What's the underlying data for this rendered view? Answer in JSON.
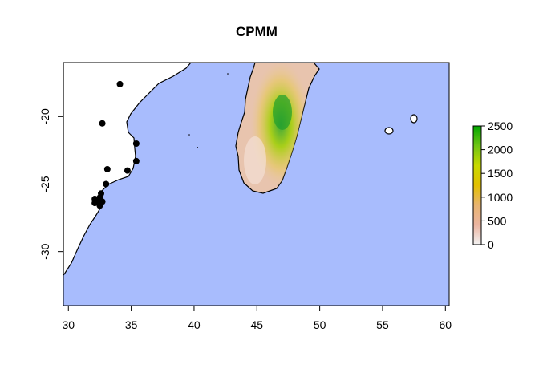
{
  "title": "CPMM",
  "x_axis": {
    "range": [
      29.6,
      60.3
    ],
    "ticks": [
      30,
      35,
      40,
      45,
      50,
      55,
      60
    ]
  },
  "y_axis": {
    "range": [
      -34.0,
      -16.0
    ],
    "ticks": [
      -20,
      -25,
      -30
    ]
  },
  "legend": {
    "range": [
      0,
      2500
    ],
    "ticks": [
      0,
      500,
      1000,
      1500,
      2000,
      2500
    ],
    "colors": [
      "#f2f2f2",
      "#ebb4a0",
      "#e8b470",
      "#e3c000",
      "#c8d900",
      "#6fc415",
      "#00a600"
    ]
  },
  "colors": {
    "ocean": "#a8bcfd",
    "land": "#ffffff",
    "points": "#000000"
  },
  "points": [
    {
      "lon": 34.1,
      "lat": -17.6
    },
    {
      "lon": 32.7,
      "lat": -20.5
    },
    {
      "lon": 35.4,
      "lat": -22.0
    },
    {
      "lon": 35.4,
      "lat": -23.3
    },
    {
      "lon": 33.1,
      "lat": -23.9
    },
    {
      "lon": 34.7,
      "lat": -24.0
    },
    {
      "lon": 33.0,
      "lat": -25.0
    },
    {
      "lon": 32.6,
      "lat": -25.7
    },
    {
      "lon": 32.5,
      "lat": -26.0
    },
    {
      "lon": 32.1,
      "lat": -26.1
    },
    {
      "lon": 32.4,
      "lat": -26.3
    },
    {
      "lon": 32.7,
      "lat": -26.3
    },
    {
      "lon": 32.1,
      "lat": -26.4
    },
    {
      "lon": 32.5,
      "lat": -26.6
    }
  ]
}
